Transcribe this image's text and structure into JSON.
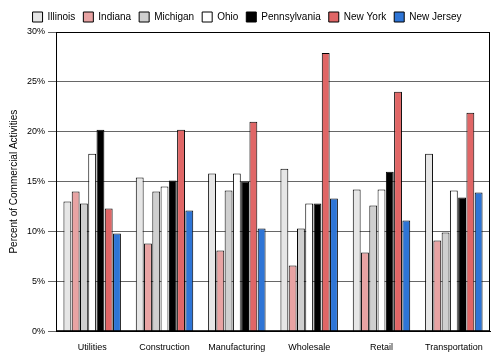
{
  "chart_data": {
    "type": "bar",
    "y_label": "Percent of Commercial Activities",
    "categories": [
      "Utilities",
      "Construction",
      "Manufacturing",
      "Wholesale",
      "Retail",
      "Transportation"
    ],
    "series": [
      {
        "name": "Illinois",
        "color": "#e6e6e6",
        "values": [
          13.0,
          15.4,
          15.8,
          16.3,
          14.2,
          17.8
        ]
      },
      {
        "name": "Indiana",
        "color": "#e8a3a3",
        "values": [
          14.0,
          8.8,
          8.1,
          6.6,
          7.9,
          9.1
        ]
      },
      {
        "name": "Michigan",
        "color": "#cfcfcf",
        "values": [
          12.8,
          14.0,
          14.1,
          10.3,
          12.6,
          9.9
        ]
      },
      {
        "name": "Ohio",
        "color": "#ffffff",
        "values": [
          17.8,
          14.5,
          15.8,
          12.8,
          14.2,
          14.1
        ]
      },
      {
        "name": "Pennsylvania",
        "color": "#000000",
        "values": [
          20.2,
          15.1,
          15.0,
          12.8,
          16.0,
          13.4
        ]
      },
      {
        "name": "New York",
        "color": "#e06666",
        "values": [
          12.3,
          20.2,
          21.0,
          27.9,
          24.0,
          21.9
        ]
      },
      {
        "name": "New Jersey",
        "color": "#2e75d6",
        "values": [
          9.8,
          12.1,
          10.3,
          13.3,
          11.1,
          13.9
        ]
      }
    ],
    "ylim": [
      0,
      30
    ],
    "yticks": [
      {
        "value": 0,
        "label": "0%"
      },
      {
        "value": 5,
        "label": "5%"
      },
      {
        "value": 10,
        "label": "10%"
      },
      {
        "value": 15,
        "label": "15%"
      },
      {
        "value": 20,
        "label": "20%"
      },
      {
        "value": 25,
        "label": "25%"
      },
      {
        "value": 30,
        "label": "30%"
      }
    ],
    "grid": true,
    "legend": "top"
  }
}
